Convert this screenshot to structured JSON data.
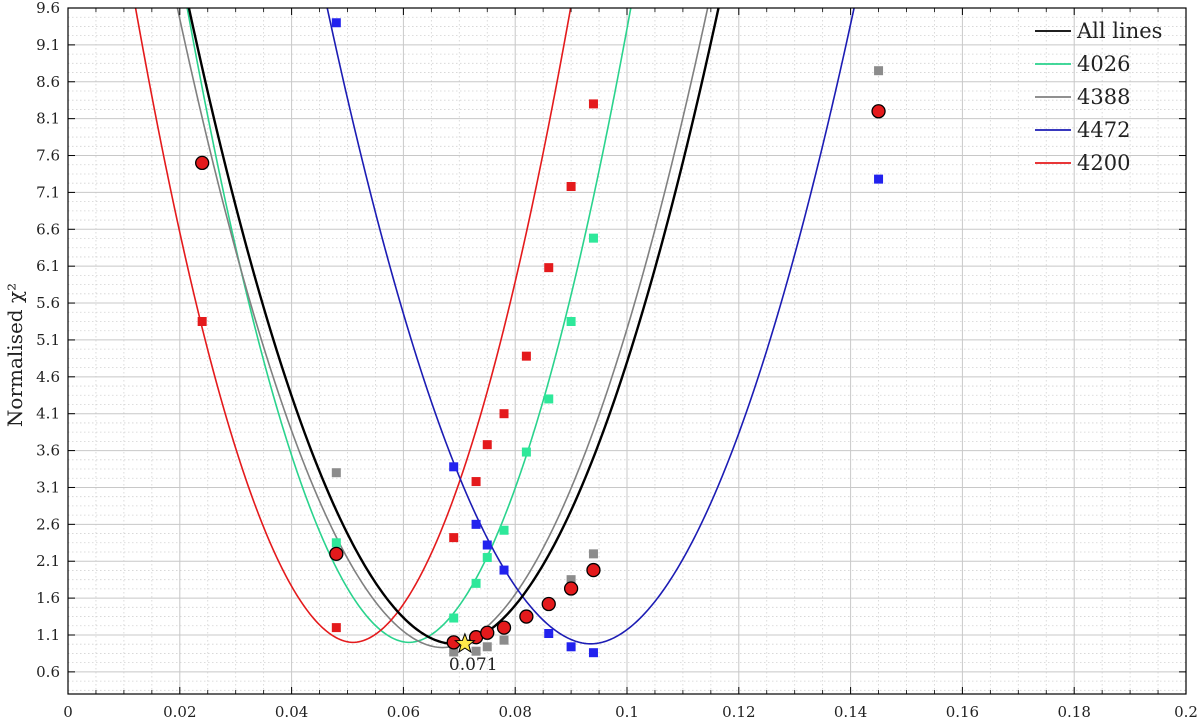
{
  "chart_data": {
    "type": "scatter",
    "title": "",
    "xlabel": "",
    "ylabel": "Normalised χ²",
    "xlim": [
      0,
      0.2
    ],
    "ylim": [
      0.3,
      9.6
    ],
    "x_ticks": [
      0,
      0.02,
      0.04,
      0.06,
      0.08,
      0.1,
      0.12,
      0.14,
      0.16,
      0.18,
      0.2
    ],
    "x_tick_labels": [
      "0",
      "0.02",
      "0.04",
      "0.06",
      "0.08",
      "0.1",
      "0.12",
      "0.14",
      "0.16",
      "0.18",
      "0.2"
    ],
    "y_ticks": [
      0.6,
      1.1,
      1.6,
      2.1,
      2.6,
      3.1,
      3.6,
      4.1,
      4.6,
      5.1,
      5.6,
      6.1,
      6.6,
      7.1,
      7.6,
      8.1,
      8.6,
      9.1,
      9.6
    ],
    "y_tick_labels": [
      "0.6",
      "1.1",
      "1.6",
      "2.1",
      "2.6",
      "3.1",
      "3.6",
      "4.1",
      "4.6",
      "5.1",
      "5.6",
      "6.1",
      "6.6",
      "7.1",
      "7.6",
      "8.1",
      "8.6",
      "9.1",
      "9.6"
    ],
    "grid": "major and minor, dotted",
    "legend_position": "top-right",
    "series": [
      {
        "name": "All lines",
        "color": "#000000",
        "marker_color": "#e41a1c",
        "marker": "circle",
        "points": [
          [
            0.024,
            7.5
          ],
          [
            0.048,
            2.2
          ],
          [
            0.069,
            1.0
          ],
          [
            0.073,
            1.07
          ],
          [
            0.075,
            1.13
          ],
          [
            0.078,
            1.2
          ],
          [
            0.082,
            1.35
          ],
          [
            0.086,
            1.52
          ],
          [
            0.09,
            1.73
          ],
          [
            0.094,
            1.98
          ],
          [
            0.145,
            8.2
          ]
        ],
        "fit": {
          "min_x": 0.069,
          "min_y": 0.98,
          "a": 3010,
          "p": 1.92
        }
      },
      {
        "name": "4026",
        "color": "#2ad38d",
        "marker_color": "#2ee89a",
        "marker": "square",
        "points": [
          [
            0.048,
            2.35
          ],
          [
            0.069,
            1.33
          ],
          [
            0.073,
            1.8
          ],
          [
            0.075,
            2.15
          ],
          [
            0.078,
            2.52
          ],
          [
            0.082,
            3.58
          ],
          [
            0.086,
            4.3
          ],
          [
            0.09,
            5.35
          ],
          [
            0.094,
            6.48
          ]
        ],
        "fit": {
          "min_x": 0.061,
          "min_y": 1.0,
          "a": 4220,
          "p": 1.92
        }
      },
      {
        "name": "4388",
        "color": "#808080",
        "marker_color": "#8c8c8c",
        "marker": "square",
        "points": [
          [
            0.048,
            3.3
          ],
          [
            0.069,
            0.87
          ],
          [
            0.073,
            0.88
          ],
          [
            0.075,
            0.94
          ],
          [
            0.078,
            1.03
          ],
          [
            0.082,
            1.35
          ],
          [
            0.086,
            1.53
          ],
          [
            0.09,
            1.85
          ],
          [
            0.094,
            2.2
          ],
          [
            0.145,
            8.75
          ]
        ],
        "fit": {
          "min_x": 0.067,
          "min_y": 0.93,
          "a": 3020,
          "p": 1.92
        }
      },
      {
        "name": "4472",
        "color": "#1c1cb4",
        "marker_color": "#2222ee",
        "marker": "square",
        "points": [
          [
            0.048,
            9.4
          ],
          [
            0.069,
            3.38
          ],
          [
            0.073,
            2.6
          ],
          [
            0.075,
            2.32
          ],
          [
            0.078,
            1.98
          ],
          [
            0.086,
            1.12
          ],
          [
            0.09,
            0.94
          ],
          [
            0.094,
            0.86
          ],
          [
            0.145,
            7.28
          ]
        ],
        "fit": {
          "min_x": 0.0935,
          "min_y": 0.98,
          "a": 3040,
          "p": 1.92
        }
      },
      {
        "name": "4200",
        "color": "#e41a1c",
        "marker_color": "#e41a1c",
        "marker": "square",
        "points": [
          [
            0.024,
            5.35
          ],
          [
            0.048,
            1.2
          ],
          [
            0.069,
            2.42
          ],
          [
            0.073,
            3.18
          ],
          [
            0.075,
            3.68
          ],
          [
            0.078,
            4.1
          ],
          [
            0.082,
            4.88
          ],
          [
            0.086,
            6.08
          ],
          [
            0.09,
            7.18
          ],
          [
            0.094,
            8.3
          ]
        ],
        "fit": {
          "min_x": 0.051,
          "min_y": 1.0,
          "a": 4380,
          "p": 1.92
        }
      }
    ],
    "best_fit": {
      "x": 0.071,
      "y": 0.98,
      "label": "0.071",
      "marker": "star",
      "color": "#ffe94a"
    }
  }
}
